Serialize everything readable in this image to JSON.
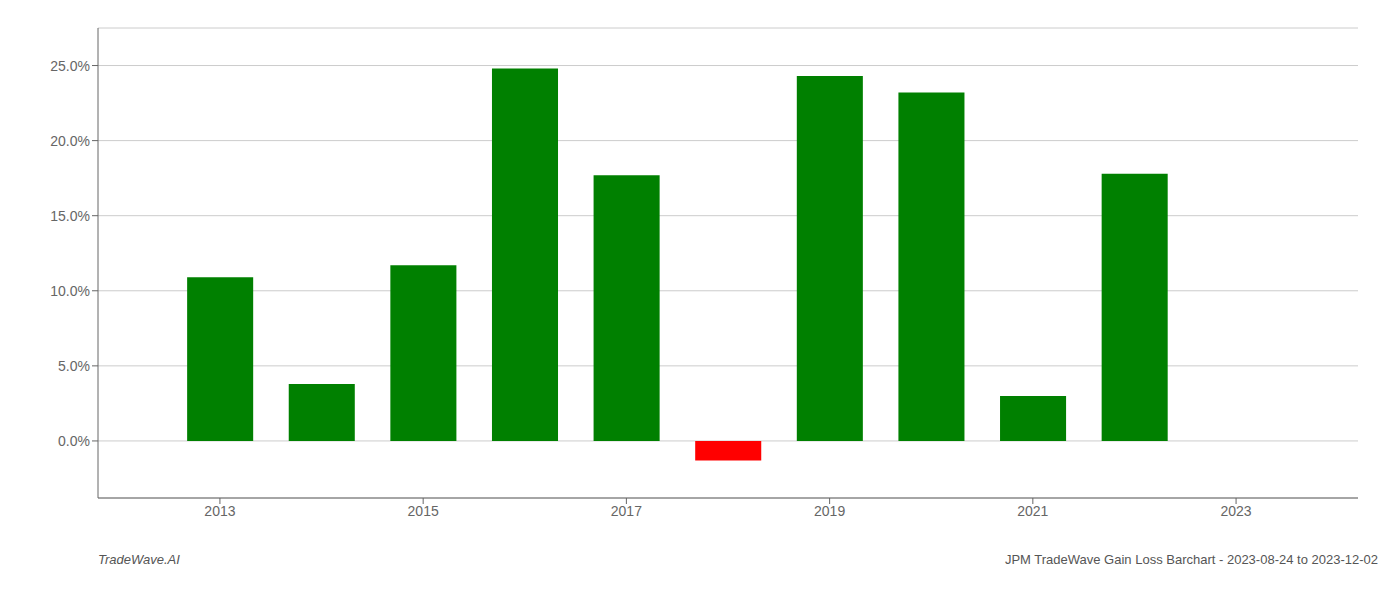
{
  "chart_data": {
    "type": "bar",
    "x": [
      2013,
      2014,
      2015,
      2016,
      2017,
      2018,
      2019,
      2020,
      2021,
      2022
    ],
    "values": [
      0.109,
      0.038,
      0.117,
      0.248,
      0.177,
      -0.013,
      0.243,
      0.232,
      0.03,
      0.178
    ],
    "colors": [
      "#008000",
      "#008000",
      "#008000",
      "#008000",
      "#008000",
      "#ff0000",
      "#008000",
      "#008000",
      "#008000",
      "#008000"
    ],
    "xlim": [
      2011.8,
      2024.2
    ],
    "xticks": [
      2013,
      2015,
      2017,
      2019,
      2021,
      2023
    ],
    "ylim": [
      -0.038,
      0.275
    ],
    "yticks": [
      {
        "value": 0.0,
        "label": "0.0%"
      },
      {
        "value": 0.05,
        "label": "5.0%"
      },
      {
        "value": 0.1,
        "label": "10.0%"
      },
      {
        "value": 0.15,
        "label": "15.0%"
      },
      {
        "value": 0.2,
        "label": "20.0%"
      },
      {
        "value": 0.25,
        "label": "25.0%"
      }
    ],
    "grid": true,
    "annotations": [
      "TradeWave.AI",
      "JPM TradeWave Gain Loss Barchart - 2023-08-24 to 2023-12-02"
    ]
  }
}
